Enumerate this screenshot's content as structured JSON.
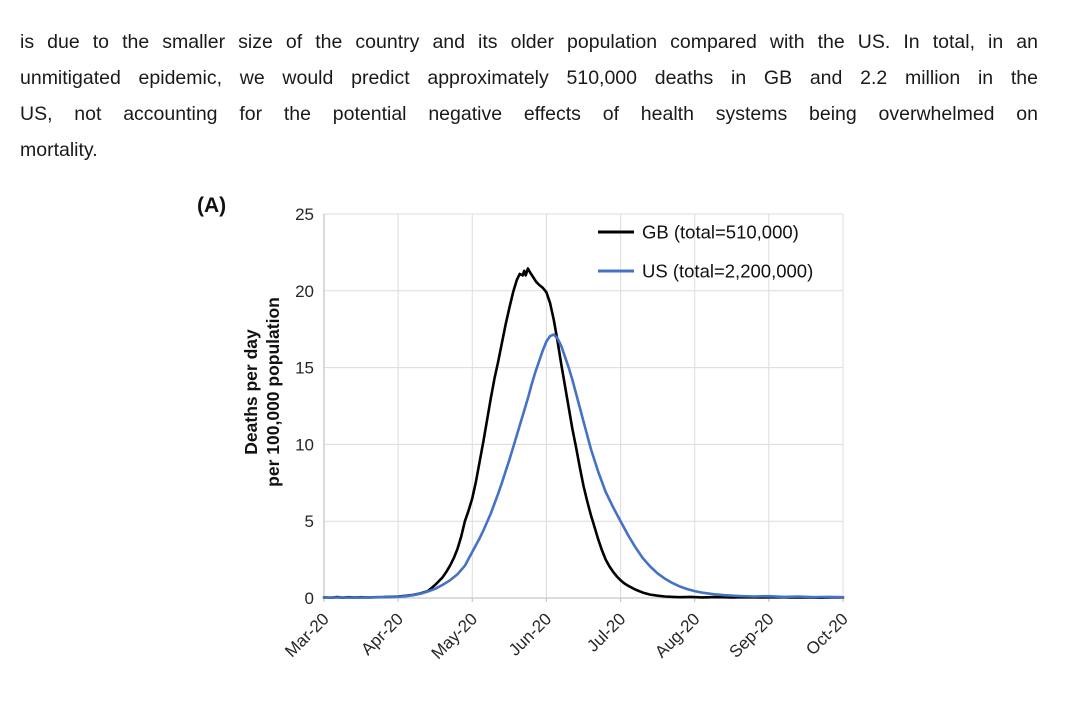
{
  "page": {
    "paragraph_lines": [
      "is due to the smaller size of the country and its older population compared with the US. In total, in an",
      "unmitigated epidemic, we would predict approximately 510,000 deaths in GB and 2.2 million in the",
      "US, not accounting for the potential negative effects of health systems being overwhelmed on",
      "mortality."
    ]
  },
  "figure": {
    "panel_label": "(A)"
  },
  "chart_data": {
    "type": "line",
    "title": "",
    "xlabel": "",
    "ylabel": "Deaths per day per 100,000 population",
    "ylabel_lines": [
      "Deaths per day",
      "per 100,000 population"
    ],
    "x_tick_labels": [
      "Mar-20",
      "Apr-20",
      "May-20",
      "Jun-20",
      "Jul-20",
      "Aug-20",
      "Sep-20",
      "Oct-20"
    ],
    "xlim": [
      0,
      7
    ],
    "ylim": [
      0,
      25
    ],
    "yticks": [
      0,
      5,
      10,
      15,
      20,
      25
    ],
    "grid": true,
    "legend_position": "inside-top-right",
    "colors": {
      "gridline": "#dcdcdc",
      "axis": "#c6c6c6",
      "gb": "#000000",
      "us": "#4472C4"
    },
    "series": [
      {
        "name": "GB (total=510,000)",
        "color": "#000000",
        "points": [
          [
            0,
            0.04
          ],
          [
            0.1,
            0.02
          ],
          [
            0.18,
            0.06
          ],
          [
            0.25,
            0.02
          ],
          [
            0.33,
            0.05
          ],
          [
            0.42,
            0.03
          ],
          [
            0.5,
            0.05
          ],
          [
            0.6,
            0.03
          ],
          [
            0.7,
            0.05
          ],
          [
            0.8,
            0.06
          ],
          [
            0.9,
            0.08
          ],
          [
            1.0,
            0.1
          ],
          [
            1.1,
            0.14
          ],
          [
            1.2,
            0.2
          ],
          [
            1.3,
            0.3
          ],
          [
            1.4,
            0.45
          ],
          [
            1.5,
            0.85
          ],
          [
            1.6,
            1.35
          ],
          [
            1.65,
            1.7
          ],
          [
            1.7,
            2.1
          ],
          [
            1.75,
            2.6
          ],
          [
            1.8,
            3.2
          ],
          [
            1.85,
            4.0
          ],
          [
            1.9,
            5.0
          ],
          [
            1.95,
            5.7
          ],
          [
            2.0,
            6.5
          ],
          [
            2.05,
            7.6
          ],
          [
            2.1,
            8.9
          ],
          [
            2.15,
            10.2
          ],
          [
            2.2,
            11.6
          ],
          [
            2.25,
            13.0
          ],
          [
            2.3,
            14.3
          ],
          [
            2.35,
            15.4
          ],
          [
            2.4,
            16.6
          ],
          [
            2.45,
            17.8
          ],
          [
            2.5,
            18.9
          ],
          [
            2.55,
            19.9
          ],
          [
            2.6,
            20.7
          ],
          [
            2.64,
            21.1
          ],
          [
            2.68,
            21.0
          ],
          [
            2.7,
            21.3
          ],
          [
            2.72,
            21.0
          ],
          [
            2.75,
            21.45
          ],
          [
            2.78,
            21.2
          ],
          [
            2.82,
            20.9
          ],
          [
            2.86,
            20.6
          ],
          [
            2.9,
            20.4
          ],
          [
            2.95,
            20.2
          ],
          [
            3.0,
            19.9
          ],
          [
            3.05,
            19.2
          ],
          [
            3.1,
            18.1
          ],
          [
            3.15,
            16.7
          ],
          [
            3.2,
            15.2
          ],
          [
            3.25,
            13.8
          ],
          [
            3.3,
            12.4
          ],
          [
            3.35,
            11.0
          ],
          [
            3.4,
            9.8
          ],
          [
            3.45,
            8.5
          ],
          [
            3.5,
            7.3
          ],
          [
            3.55,
            6.3
          ],
          [
            3.6,
            5.4
          ],
          [
            3.65,
            4.6
          ],
          [
            3.7,
            3.8
          ],
          [
            3.75,
            3.1
          ],
          [
            3.8,
            2.5
          ],
          [
            3.85,
            2.05
          ],
          [
            3.9,
            1.7
          ],
          [
            3.95,
            1.4
          ],
          [
            4.0,
            1.15
          ],
          [
            4.05,
            0.95
          ],
          [
            4.1,
            0.8
          ],
          [
            4.2,
            0.55
          ],
          [
            4.3,
            0.35
          ],
          [
            4.4,
            0.22
          ],
          [
            4.5,
            0.15
          ],
          [
            4.6,
            0.1
          ],
          [
            4.7,
            0.07
          ],
          [
            4.8,
            0.05
          ],
          [
            4.95,
            0.07
          ],
          [
            5.1,
            0.04
          ],
          [
            5.3,
            0.06
          ],
          [
            5.5,
            0.03
          ],
          [
            5.7,
            0.05
          ],
          [
            5.9,
            0.03
          ],
          [
            6.1,
            0.05
          ],
          [
            6.3,
            0.03
          ],
          [
            6.5,
            0.04
          ],
          [
            6.7,
            0.02
          ],
          [
            6.85,
            0.04
          ],
          [
            7,
            0.03
          ]
        ]
      },
      {
        "name": "US (total=2,200,000)",
        "color": "#4472C4",
        "points": [
          [
            0,
            0.02
          ],
          [
            0.2,
            0.03
          ],
          [
            0.4,
            0.02
          ],
          [
            0.6,
            0.04
          ],
          [
            0.8,
            0.05
          ],
          [
            1.0,
            0.08
          ],
          [
            1.1,
            0.12
          ],
          [
            1.2,
            0.18
          ],
          [
            1.3,
            0.28
          ],
          [
            1.4,
            0.42
          ],
          [
            1.5,
            0.6
          ],
          [
            1.6,
            0.85
          ],
          [
            1.7,
            1.15
          ],
          [
            1.8,
            1.55
          ],
          [
            1.9,
            2.1
          ],
          [
            1.95,
            2.55
          ],
          [
            2.0,
            3.0
          ],
          [
            2.05,
            3.45
          ],
          [
            2.1,
            3.9
          ],
          [
            2.15,
            4.4
          ],
          [
            2.2,
            4.95
          ],
          [
            2.25,
            5.5
          ],
          [
            2.3,
            6.15
          ],
          [
            2.35,
            6.8
          ],
          [
            2.4,
            7.5
          ],
          [
            2.45,
            8.25
          ],
          [
            2.5,
            9.0
          ],
          [
            2.55,
            9.8
          ],
          [
            2.6,
            10.6
          ],
          [
            2.65,
            11.4
          ],
          [
            2.7,
            12.2
          ],
          [
            2.75,
            13.0
          ],
          [
            2.8,
            13.9
          ],
          [
            2.85,
            14.7
          ],
          [
            2.9,
            15.4
          ],
          [
            2.95,
            16.1
          ],
          [
            3.0,
            16.7
          ],
          [
            3.05,
            17.05
          ],
          [
            3.1,
            17.15
          ],
          [
            3.15,
            16.9
          ],
          [
            3.2,
            16.4
          ],
          [
            3.25,
            15.7
          ],
          [
            3.3,
            15.0
          ],
          [
            3.35,
            14.2
          ],
          [
            3.4,
            13.3
          ],
          [
            3.45,
            12.4
          ],
          [
            3.5,
            11.5
          ],
          [
            3.55,
            10.6
          ],
          [
            3.6,
            9.7
          ],
          [
            3.7,
            8.2
          ],
          [
            3.8,
            6.9
          ],
          [
            3.9,
            5.9
          ],
          [
            4.0,
            5.0
          ],
          [
            4.1,
            4.1
          ],
          [
            4.2,
            3.3
          ],
          [
            4.3,
            2.6
          ],
          [
            4.4,
            2.05
          ],
          [
            4.5,
            1.6
          ],
          [
            4.6,
            1.25
          ],
          [
            4.7,
            0.97
          ],
          [
            4.8,
            0.75
          ],
          [
            4.9,
            0.58
          ],
          [
            5.0,
            0.45
          ],
          [
            5.1,
            0.35
          ],
          [
            5.25,
            0.25
          ],
          [
            5.4,
            0.18
          ],
          [
            5.6,
            0.13
          ],
          [
            5.8,
            0.1
          ],
          [
            6.0,
            0.12
          ],
          [
            6.2,
            0.07
          ],
          [
            6.4,
            0.1
          ],
          [
            6.6,
            0.05
          ],
          [
            6.8,
            0.07
          ],
          [
            7,
            0.05
          ]
        ]
      }
    ]
  }
}
